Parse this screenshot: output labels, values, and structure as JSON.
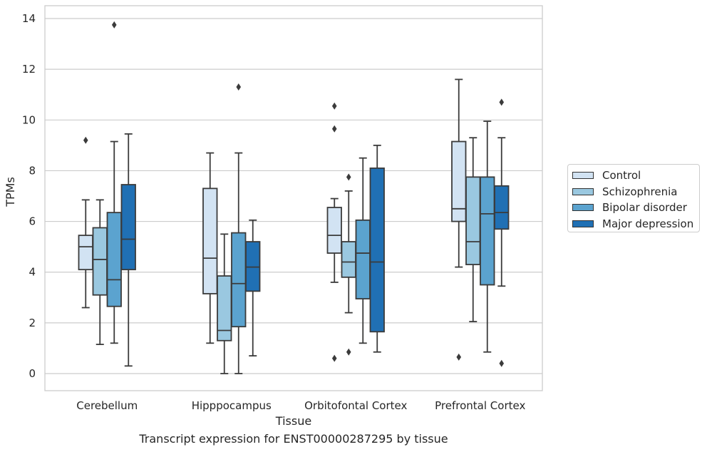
{
  "chart_data": {
    "type": "box",
    "xlabel": "Tissue",
    "ylabel": "TPMs",
    "caption": "Transcript expression for ENST00000287295 by tissue",
    "ylim": [
      -0.65,
      14.5
    ],
    "yticks": [
      0,
      2,
      4,
      6,
      8,
      10,
      12,
      14
    ],
    "grid": true,
    "legend_position": "right",
    "categories": [
      "Cerebellum",
      "Hipppocampus",
      "Orbitofontal Cortex",
      "Prefrontal Cortex"
    ],
    "series": [
      {
        "name": "Control",
        "color": "#d2e3f3",
        "boxes": [
          {
            "whisker_low": 2.6,
            "q1": 4.1,
            "median": 5.0,
            "q3": 5.45,
            "whisker_high": 6.85,
            "outliers": [
              9.2
            ]
          },
          {
            "whisker_low": 1.2,
            "q1": 3.15,
            "median": 4.55,
            "q3": 7.3,
            "whisker_high": 8.7,
            "outliers": []
          },
          {
            "whisker_low": 3.6,
            "q1": 4.75,
            "median": 5.45,
            "q3": 6.55,
            "whisker_high": 6.9,
            "outliers": [
              10.55,
              9.65,
              0.6
            ]
          },
          {
            "whisker_low": 4.2,
            "q1": 6.0,
            "median": 6.5,
            "q3": 9.15,
            "whisker_high": 11.6,
            "outliers": [
              0.65
            ]
          }
        ]
      },
      {
        "name": "Schizophrenia",
        "color": "#9ac8e0",
        "boxes": [
          {
            "whisker_low": 1.15,
            "q1": 3.1,
            "median": 4.5,
            "q3": 5.75,
            "whisker_high": 6.85,
            "outliers": []
          },
          {
            "whisker_low": 0.0,
            "q1": 1.3,
            "median": 1.7,
            "q3": 3.85,
            "whisker_high": 5.5,
            "outliers": []
          },
          {
            "whisker_low": 2.4,
            "q1": 3.8,
            "median": 4.4,
            "q3": 5.2,
            "whisker_high": 7.2,
            "outliers": [
              7.75,
              0.85
            ]
          },
          {
            "whisker_low": 2.05,
            "q1": 4.3,
            "median": 5.2,
            "q3": 7.75,
            "whisker_high": 9.3,
            "outliers": []
          }
        ]
      },
      {
        "name": "Bipolar disorder",
        "color": "#5ba3cf",
        "boxes": [
          {
            "whisker_low": 1.2,
            "q1": 2.65,
            "median": 3.7,
            "q3": 6.35,
            "whisker_high": 9.15,
            "outliers": [
              13.75
            ]
          },
          {
            "whisker_low": 0.0,
            "q1": 1.85,
            "median": 3.55,
            "q3": 5.55,
            "whisker_high": 8.7,
            "outliers": [
              11.3
            ]
          },
          {
            "whisker_low": 1.2,
            "q1": 2.95,
            "median": 4.75,
            "q3": 6.05,
            "whisker_high": 8.5,
            "outliers": []
          },
          {
            "whisker_low": 0.85,
            "q1": 3.5,
            "median": 6.3,
            "q3": 7.75,
            "whisker_high": 9.95,
            "outliers": []
          }
        ]
      },
      {
        "name": "Major depression",
        "color": "#2070b4",
        "boxes": [
          {
            "whisker_low": 0.3,
            "q1": 4.1,
            "median": 5.3,
            "q3": 7.45,
            "whisker_high": 9.45,
            "outliers": []
          },
          {
            "whisker_low": 0.7,
            "q1": 3.25,
            "median": 4.2,
            "q3": 5.2,
            "whisker_high": 6.05,
            "outliers": []
          },
          {
            "whisker_low": 0.85,
            "q1": 1.65,
            "median": 4.4,
            "q3": 8.1,
            "whisker_high": 9.0,
            "outliers": []
          },
          {
            "whisker_low": 3.45,
            "q1": 5.7,
            "median": 6.35,
            "q3": 7.4,
            "whisker_high": 9.3,
            "outliers": [
              10.7,
              0.4
            ]
          }
        ]
      }
    ]
  }
}
